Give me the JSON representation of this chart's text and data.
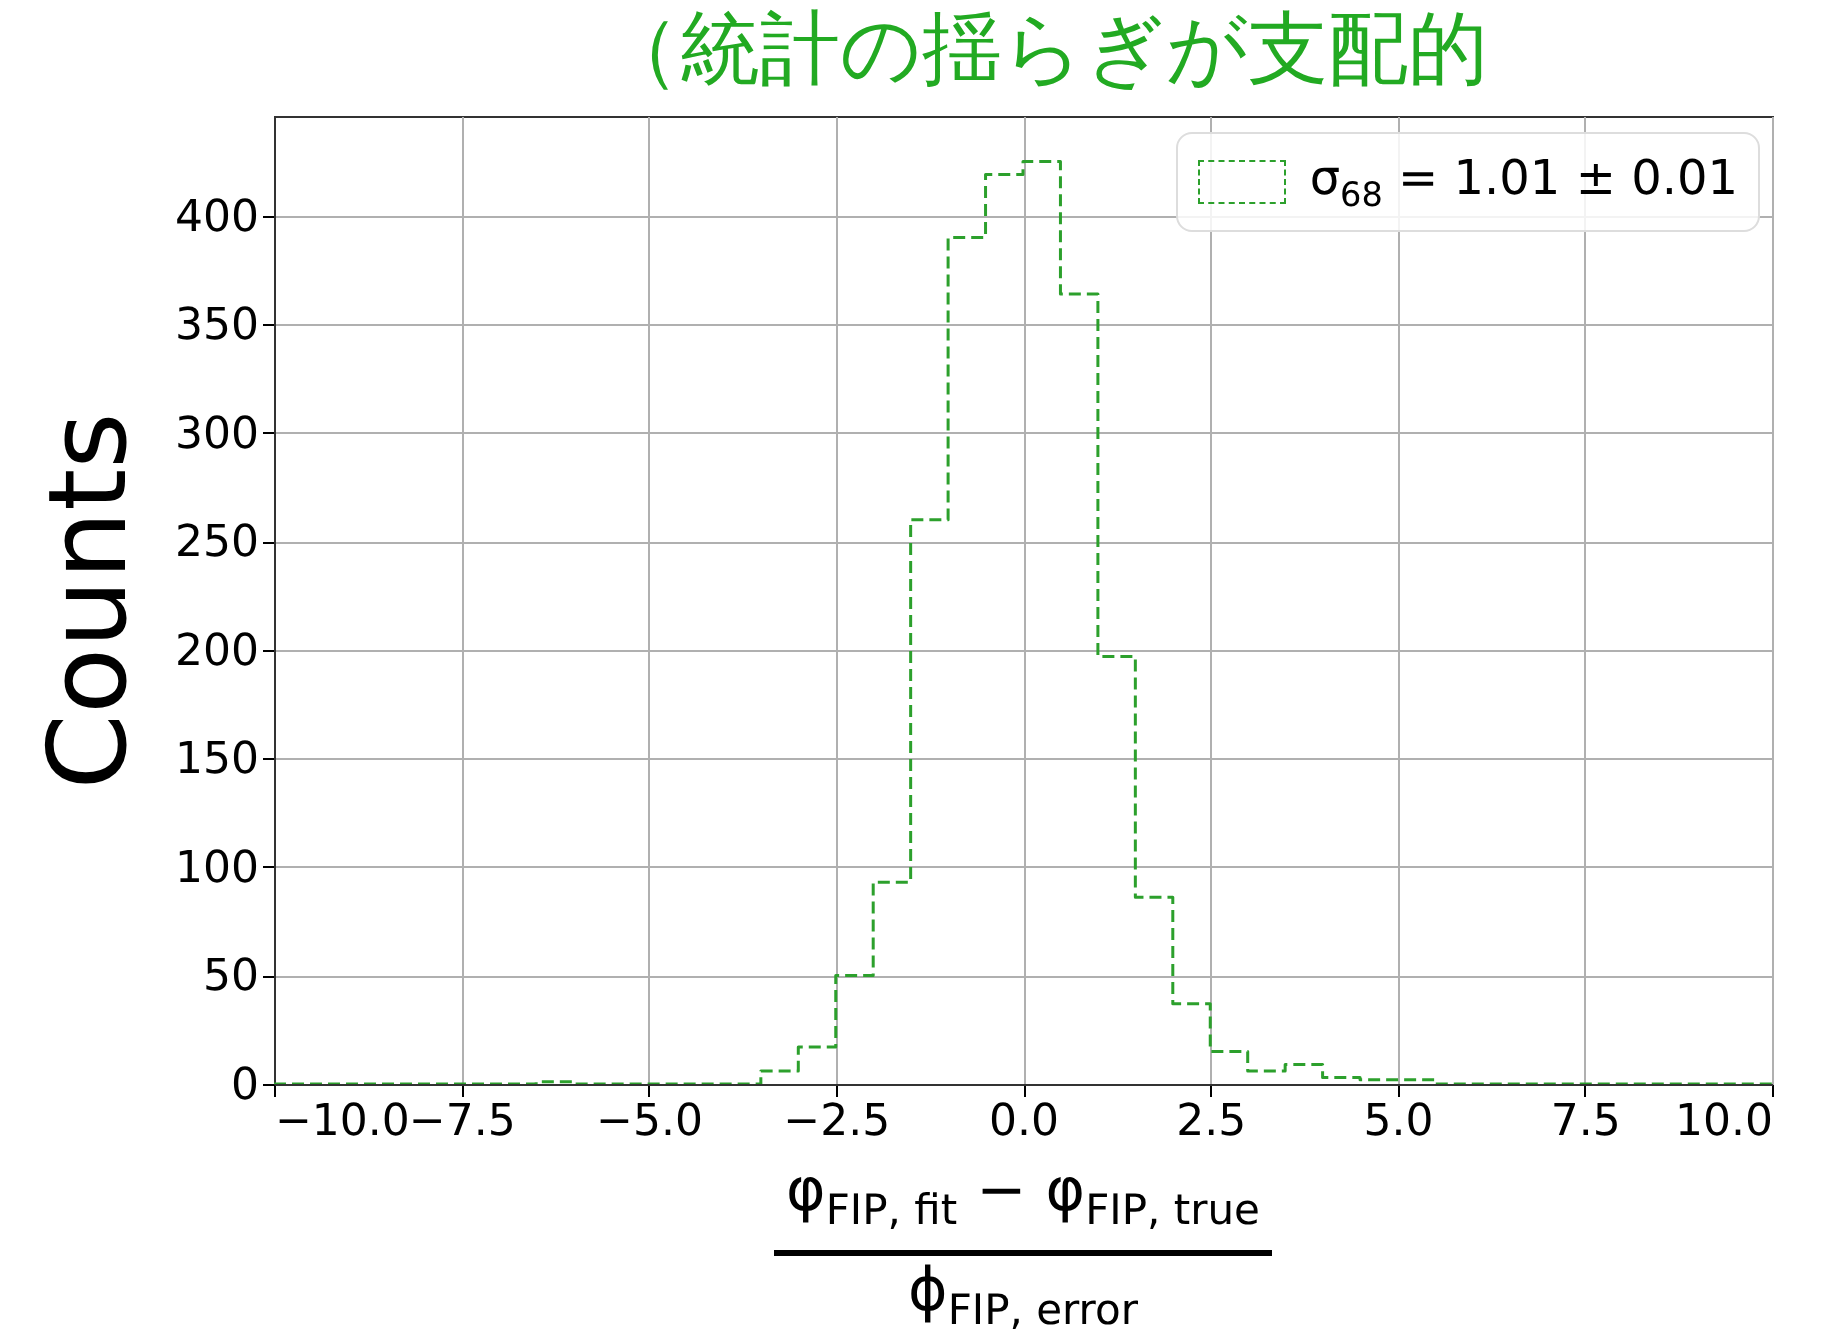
{
  "chart_data": {
    "type": "histogram",
    "ylabel": "Counts",
    "xlabel": "φ$_{FIP, fit}$ − φ$_{FIP, true}$\nϕ$_{FIP, error}$",
    "annotations": [
      "（統計の揺らぎが支配的"
    ],
    "bins": [
      -10,
      -9.5,
      -9,
      -8.5,
      -8,
      -7.5,
      -7,
      -6.5,
      -6,
      -5.5,
      -5,
      -4.5,
      -4,
      -3.5,
      -3,
      -2.5,
      -2,
      -1.5,
      -1,
      -0.5,
      0,
      0.5,
      1,
      1.5,
      2,
      2.5,
      3,
      3.5,
      4,
      4.5,
      5,
      5.5,
      6,
      6.5,
      7,
      7.5,
      8,
      8.5,
      9,
      9.5,
      10
    ],
    "series": [
      {
        "name": "σ$_{68}$ = 1.01 ± 0.01",
        "color": "#2ca02c",
        "values": [
          0,
          0,
          0,
          0,
          0,
          0,
          0,
          1,
          0,
          0,
          0,
          0,
          0,
          6,
          17,
          50,
          93,
          260,
          390,
          419,
          425,
          364,
          197,
          86,
          37,
          15,
          6,
          9,
          3,
          2,
          2,
          0,
          0,
          0,
          0,
          0,
          0,
          0,
          0,
          0
        ]
      }
    ],
    "line_style": "dashed",
    "legend": "top right",
    "grid": true,
    "xlim": [
      -10,
      10
    ],
    "xticks": [
      {
        "value": -10,
        "label": "−10.0"
      },
      {
        "value": -7.5,
        "label": "−7.5"
      },
      {
        "value": -5,
        "label": "−5.0"
      },
      {
        "value": -2.5,
        "label": "−2.5"
      },
      {
        "value": 0,
        "label": "0.0"
      },
      2.5,
      {
        "value": 5,
        "label": "5.0"
      },
      7.5,
      {
        "value": 10,
        "label": "10.0"
      }
    ],
    "ylim": [
      0,
      446
    ],
    "yticks": [
      0,
      50,
      100,
      150,
      200,
      250,
      300,
      350,
      400
    ]
  }
}
